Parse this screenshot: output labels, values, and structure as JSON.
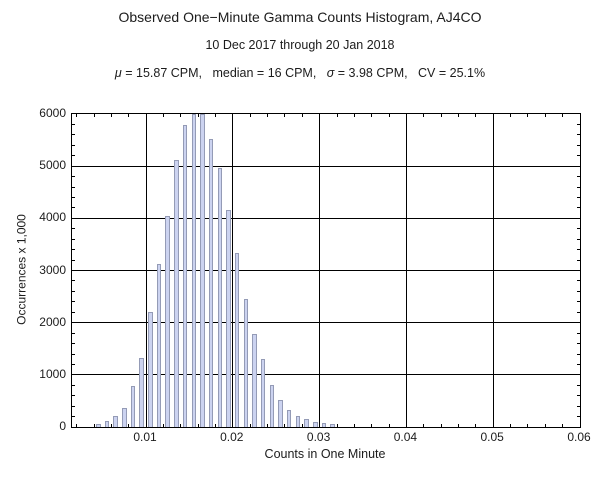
{
  "header": {
    "title": "Observed One−Minute Gamma Counts Histogram, AJ4CO",
    "subtitle": "10 Dec 2017 through 20 Jan 2018",
    "stats_segments": [
      {
        "text": "μ"
      },
      {
        "text": " = 15.87 CPM,   median = 16 CPM,   "
      },
      {
        "text": "σ"
      },
      {
        "text": " = 3.98 CPM,   CV = 25.1%"
      }
    ]
  },
  "axes": {
    "x_title": "Counts in One Minute",
    "y_title": "Occurrences x 1,000"
  },
  "chart_data": {
    "type": "bar",
    "title": "Observed One−Minute Gamma Counts Histogram, AJ4CO",
    "subtitle": "10 Dec 2017 through 20 Jan 2018",
    "annotation": "μ = 15.87 CPM,   median = 16 CPM,   σ = 3.98 CPM,   CV = 25.1%",
    "xlabel": "Counts in One Minute",
    "ylabel": "Occurrences x 1,000",
    "xlim": [
      0.00147,
      0.06
    ],
    "ylim": [
      0,
      6000
    ],
    "x_major_ticks": [
      0.01,
      0.02,
      0.03,
      0.04,
      0.05,
      0.06
    ],
    "x_tick_labels": [
      "0.01",
      "0.02",
      "0.03",
      "0.04",
      "0.05",
      "0.06"
    ],
    "x_minor_step": 0.002,
    "y_major_ticks": [
      0,
      1000,
      2000,
      3000,
      4000,
      5000,
      6000
    ],
    "y_tick_labels": [
      "0",
      "1000",
      "2000",
      "3000",
      "4000",
      "5000",
      "6000"
    ],
    "y_minor_step": 200,
    "x_gridlines": [
      0.01,
      0.02,
      0.03,
      0.04,
      0.05
    ],
    "y_gridlines": [
      1000,
      2000,
      3000,
      4000,
      5000
    ],
    "grid": true,
    "legend": false,
    "bin_width": 0.001,
    "bin_centers": [
      0.0045,
      0.0055,
      0.0065,
      0.0075,
      0.0085,
      0.0095,
      0.0105,
      0.0115,
      0.0125,
      0.0135,
      0.0145,
      0.0155,
      0.0165,
      0.0175,
      0.0185,
      0.0195,
      0.0205,
      0.0215,
      0.0225,
      0.0235,
      0.0245,
      0.0255,
      0.0265,
      0.0275,
      0.0285,
      0.0295,
      0.0305,
      0.0315
    ],
    "values": [
      50,
      120,
      220,
      370,
      780,
      1320,
      2210,
      3130,
      4050,
      5120,
      5790,
      6000,
      6000,
      5520,
      4970,
      4170,
      3340,
      2450,
      1780,
      1300,
      800,
      520,
      330,
      220,
      145,
      95,
      75,
      50
    ],
    "note": "bars at bin centers 0.0155 and 0.0165 reach the top of the plot range (clipped at 6000)",
    "colors": {
      "bar_fill": "#ccd3f0",
      "bar_edge": "#949bb6",
      "grid": "#000000",
      "frame": "#000000",
      "text": "#1c1c1c",
      "background": "#ffffff"
    }
  }
}
